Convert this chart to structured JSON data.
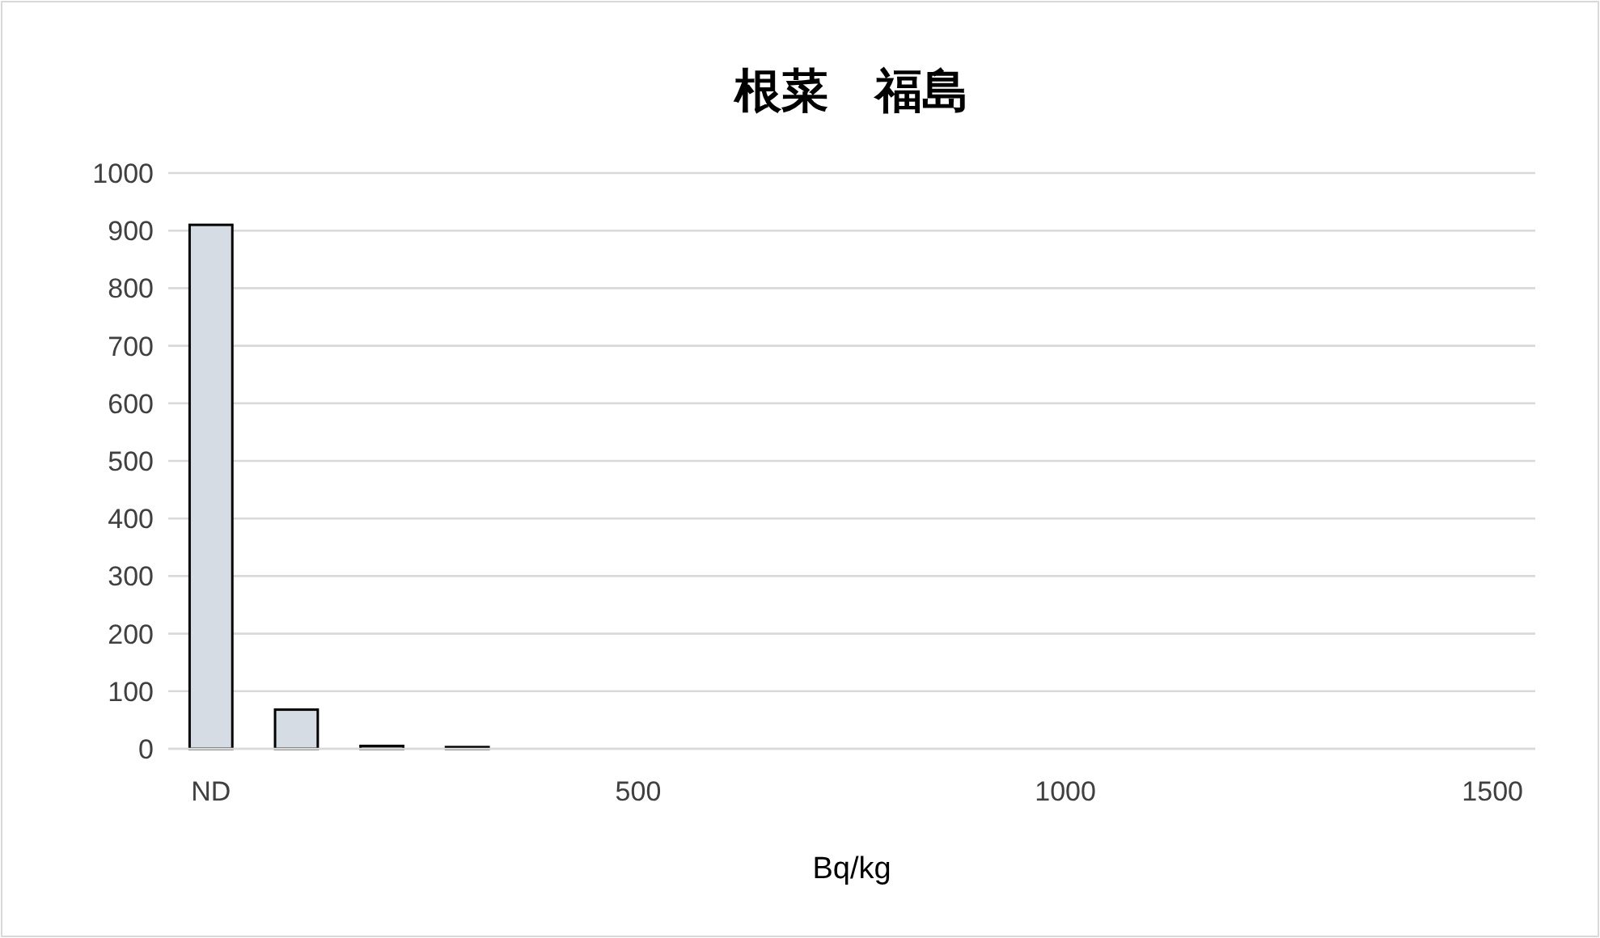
{
  "chart_data": {
    "type": "bar",
    "title": "根菜　福島",
    "xlabel": "Bq/kg",
    "categories": [
      "ND",
      null,
      null,
      null,
      null,
      "500",
      null,
      null,
      null,
      null,
      "1000",
      null,
      null,
      null,
      null,
      "1500"
    ],
    "values": [
      910,
      68,
      5,
      3,
      0,
      0,
      0,
      0,
      0,
      0,
      0,
      0,
      0,
      0,
      0,
      0
    ],
    "color": "#d6dce4",
    "ylim": [
      0,
      1000
    ],
    "yticks": [
      0,
      100,
      200,
      300,
      400,
      500,
      600,
      700,
      800,
      900,
      1000
    ],
    "grid": "y"
  }
}
